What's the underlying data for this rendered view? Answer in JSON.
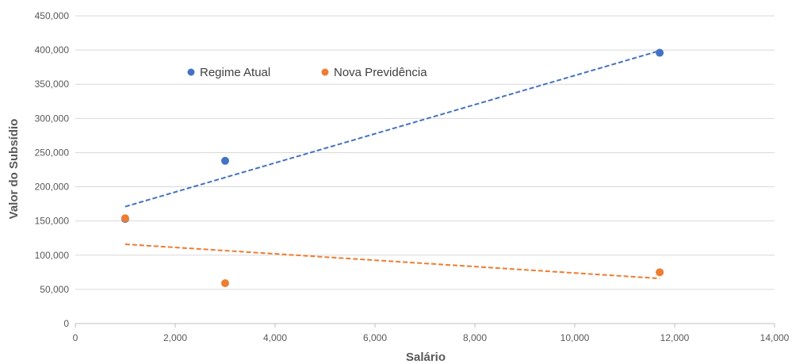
{
  "chart_data": {
    "type": "scatter",
    "title": "",
    "xlabel": "Salário",
    "ylabel": "Valor do Subsídio",
    "xlim": [
      0,
      14000
    ],
    "ylim": [
      0,
      450000
    ],
    "x_ticks": [
      0,
      2000,
      4000,
      6000,
      8000,
      10000,
      12000,
      14000
    ],
    "x_tick_labels": [
      "0",
      "2,000",
      "4,000",
      "6,000",
      "8,000",
      "10,000",
      "12,000",
      "14,000"
    ],
    "y_ticks": [
      0,
      50000,
      100000,
      150000,
      200000,
      250000,
      300000,
      350000,
      400000,
      450000
    ],
    "y_tick_labels": [
      "0",
      "50,000",
      "100,000",
      "150,000",
      "200,000",
      "250,000",
      "300,000",
      "350,000",
      "400,000",
      "450,000"
    ],
    "grid": "horizontal",
    "legend_position": "top-left inside plot",
    "series": [
      {
        "name": "Regime Atual",
        "color": "#4472C4",
        "points": [
          {
            "x": 998,
            "y": 153000
          },
          {
            "x": 3000,
            "y": 238000
          },
          {
            "x": 11700,
            "y": 396000
          }
        ],
        "trendline": {
          "style": "dashed",
          "from": {
            "x": 998,
            "y": 171000
          },
          "to": {
            "x": 11700,
            "y": 399000
          }
        }
      },
      {
        "name": "Nova Previdência",
        "color": "#ED7D31",
        "points": [
          {
            "x": 998,
            "y": 154000
          },
          {
            "x": 3000,
            "y": 59000
          },
          {
            "x": 11700,
            "y": 75000
          }
        ],
        "trendline": {
          "style": "dashed",
          "from": {
            "x": 998,
            "y": 116000
          },
          "to": {
            "x": 11700,
            "y": 66000
          }
        }
      }
    ]
  }
}
